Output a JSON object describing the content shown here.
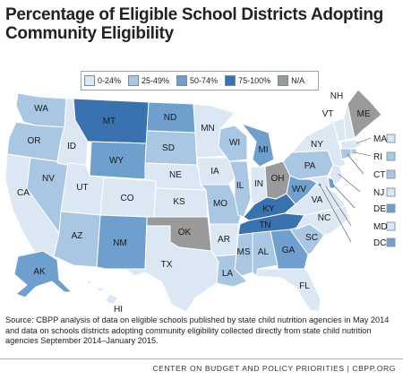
{
  "title": "Percentage of Eligible School Districts Adopting Community Eligibility",
  "legend": [
    {
      "label": "0-24%",
      "color": "#dbe7f3"
    },
    {
      "label": "25-49%",
      "color": "#a9c6e2"
    },
    {
      "label": "50-74%",
      "color": "#6f9fcd"
    },
    {
      "label": "75-100%",
      "color": "#3a72b0"
    },
    {
      "label": "N/A",
      "color": "#9a9a9a"
    }
  ],
  "states": {
    "WA": "25-49%",
    "OR": "25-49%",
    "CA": "0-24%",
    "NV": "25-49%",
    "ID": "0-24%",
    "MT": "75-100%",
    "WY": "50-74%",
    "UT": "0-24%",
    "AZ": "25-49%",
    "CO": "0-24%",
    "NM": "50-74%",
    "ND": "50-74%",
    "SD": "25-49%",
    "NE": "0-24%",
    "KS": "0-24%",
    "OK": "N/A",
    "TX": "0-24%",
    "MN": "0-24%",
    "IA": "0-24%",
    "MO": "25-49%",
    "AR": "0-24%",
    "LA": "25-49%",
    "WI": "25-49%",
    "IL": "25-49%",
    "MI": "50-74%",
    "IN": "0-24%",
    "OH": "N/A",
    "KY": "75-100%",
    "TN": "75-100%",
    "MS": "25-49%",
    "AL": "25-49%",
    "GA": "50-74%",
    "FL": "0-24%",
    "SC": "25-49%",
    "NC": "0-24%",
    "VA": "0-24%",
    "WV": "50-74%",
    "PA": "25-49%",
    "NY": "0-24%",
    "VT": "0-24%",
    "NH": "0-24%",
    "ME": "N/A",
    "MA": "0-24%",
    "RI": "25-49%",
    "CT": "25-49%",
    "NJ": "0-24%",
    "DE": "50-74%",
    "MD": "0-24%",
    "DC": "50-74%",
    "AK": "50-74%",
    "HI": "0-24%"
  },
  "map_labels": {
    "WA": "WA",
    "OR": "OR",
    "CA": "CA",
    "NV": "NV",
    "ID": "ID",
    "MT": "MT",
    "WY": "WY",
    "UT": "UT",
    "AZ": "AZ",
    "CO": "CO",
    "NM": "NM",
    "ND": "ND",
    "SD": "SD",
    "NE": "NE",
    "KS": "KS",
    "OK": "OK",
    "TX": "TX",
    "MN": "MN",
    "IA": "IA",
    "MO": "MO",
    "AR": "AR",
    "LA": "LA",
    "WI": "WI",
    "IL": "IL",
    "MI": "MI",
    "IN": "IN",
    "OH": "OH",
    "KY": "KY",
    "TN": "TN",
    "MS": "MS",
    "AL": "AL",
    "GA": "GA",
    "FL": "FL",
    "SC": "SC",
    "NC": "NC",
    "VA": "VA",
    "WV": "WV",
    "PA": "PA",
    "NY": "NY",
    "VT": "VT",
    "NH": "NH",
    "ME": "ME",
    "AK": "AK",
    "HI": "HI"
  },
  "side_labels": [
    "MA",
    "RI",
    "CT",
    "NJ",
    "DE",
    "MD",
    "DC"
  ],
  "source": "Source: CBPP analysis of data on eligible schools published by state child nutrition agencies in May 2014 and data on schools districts adopting community eligibility collected directly from state child nutrition agencies September 2014–January 2015.",
  "footer": "CENTER ON BUDGET AND POLICY PRIORITIES | CBPP.ORG"
}
